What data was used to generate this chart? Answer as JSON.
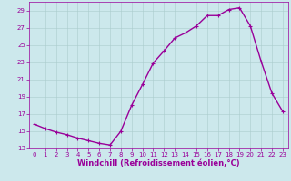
{
  "x": [
    0,
    1,
    2,
    3,
    4,
    5,
    6,
    7,
    8,
    9,
    10,
    11,
    12,
    13,
    14,
    15,
    16,
    17,
    18,
    19,
    20,
    21,
    22,
    23
  ],
  "y": [
    15.8,
    15.3,
    14.9,
    14.6,
    14.2,
    13.9,
    13.6,
    13.4,
    15.0,
    18.0,
    20.4,
    22.9,
    24.3,
    25.8,
    26.4,
    27.2,
    28.4,
    28.4,
    29.1,
    29.3,
    27.2,
    23.1,
    19.4,
    17.3
  ],
  "line_color": "#990099",
  "marker": "+",
  "marker_size": 3,
  "bg_color": "#cce8ec",
  "grid_color": "#aacccc",
  "xlabel": "Windchill (Refroidissement éolien,°C)",
  "xlabel_color": "#990099",
  "ylim": [
    13,
    30
  ],
  "yticks": [
    13,
    15,
    17,
    19,
    21,
    23,
    25,
    27,
    29
  ],
  "xlim": [
    -0.5,
    23.5
  ],
  "xticks": [
    0,
    1,
    2,
    3,
    4,
    5,
    6,
    7,
    8,
    9,
    10,
    11,
    12,
    13,
    14,
    15,
    16,
    17,
    18,
    19,
    20,
    21,
    22,
    23
  ],
  "tick_color": "#990099",
  "tick_fontsize": 5,
  "xlabel_fontsize": 6,
  "line_width": 1.0,
  "marker_color": "#990099",
  "spine_color": "#990099"
}
